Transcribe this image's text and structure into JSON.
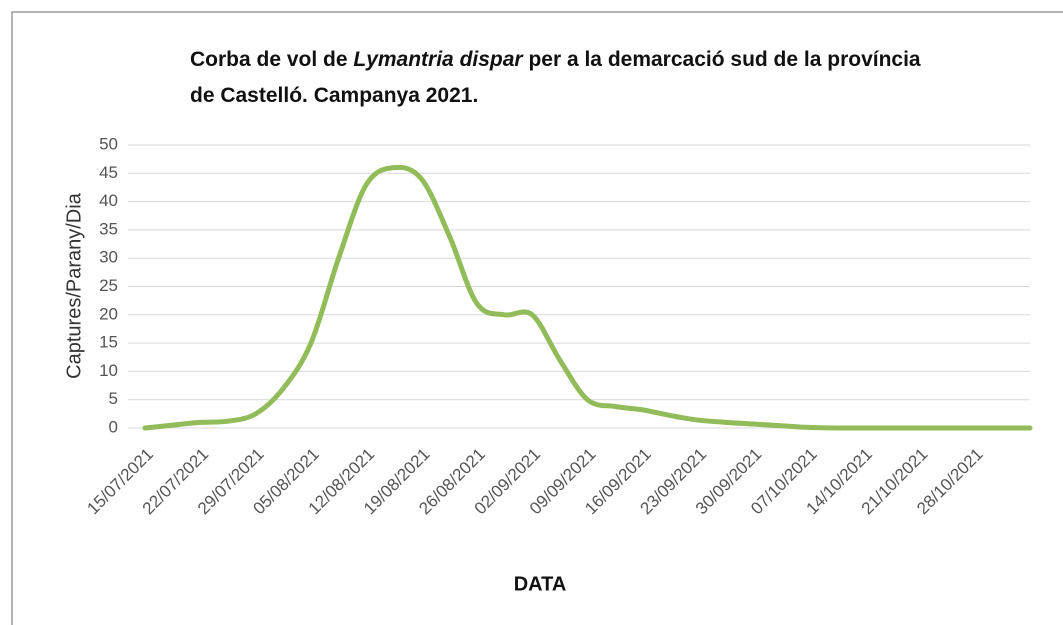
{
  "chart_data": {
    "type": "line",
    "title": [
      "Corba de vol de ",
      "Lymantria dispar",
      " per a la demarcació sud de la província de Castelló. Campanya 2021."
    ],
    "xlabel": "DATA",
    "ylabel": "Captures/Parany/Dia",
    "categories": [
      "15/07/2021",
      null,
      "22/07/2021",
      null,
      "29/07/2021",
      null,
      "05/08/2021",
      null,
      "12/08/2021",
      null,
      "19/08/2021",
      null,
      "26/08/2021",
      null,
      "02/09/2021",
      null,
      "09/09/2021",
      null,
      "16/09/2021",
      null,
      "23/09/2021",
      null,
      "30/09/2021",
      null,
      "07/10/2021",
      null,
      "14/10/2021",
      null,
      "21/10/2021",
      null,
      "28/10/2021",
      null,
      null
    ],
    "series": [
      {
        "color": "#92bb5a",
        "values": [
          0,
          0.5,
          1,
          1.2,
          2.5,
          7,
          15,
          30,
          43,
          46,
          44,
          34,
          22,
          20,
          20,
          12,
          5,
          3.8,
          3.2,
          2.2,
          1.4,
          1,
          0.7,
          0.4,
          0.1,
          0,
          0,
          0,
          0,
          0,
          0,
          0,
          0
        ]
      }
    ],
    "ylim": [
      0,
      50
    ],
    "yticks": [
      0,
      5,
      10,
      15,
      20,
      25,
      30,
      35,
      40,
      45,
      50
    ],
    "grid": true
  }
}
